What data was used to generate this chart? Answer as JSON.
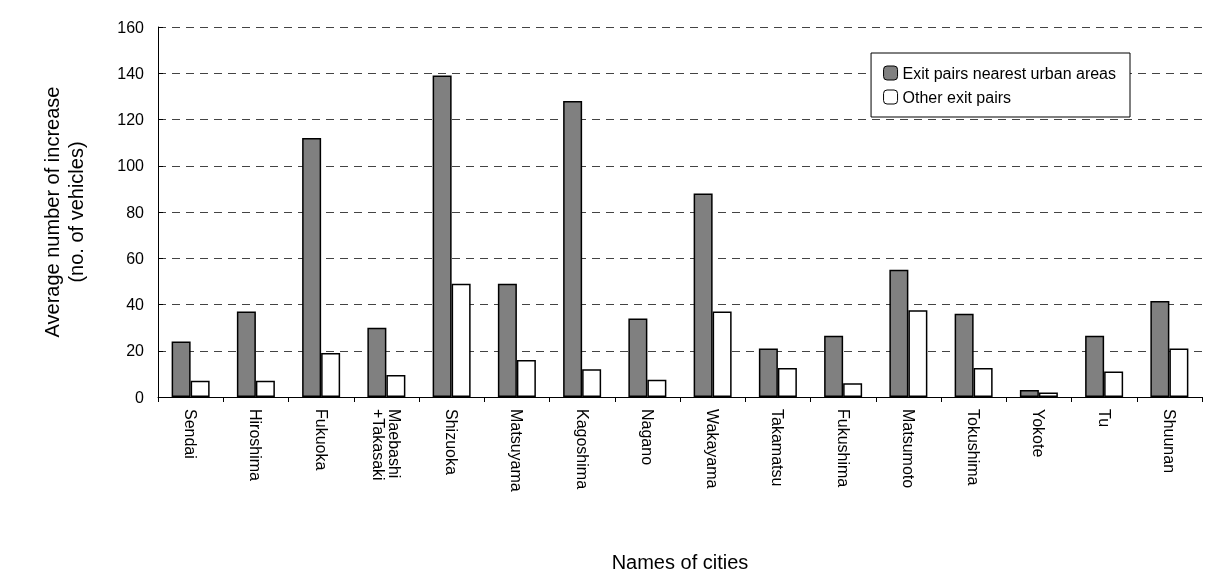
{
  "chart_data": {
    "type": "bar",
    "xlabel": "Names of cities",
    "ylabel": "Average number of increase\n(no. of vehicles)",
    "categories": [
      "Sendai",
      "Hiroshima",
      "Fukuoka",
      "Maebashi\n+Takasaki",
      "Shizuoka",
      "Matsuyama",
      "Kagoshima",
      "Nagano",
      "Wakayama",
      "Takamatsu",
      "Fukushima",
      "Matsumoto",
      "Tokushima",
      "Yokote",
      "Tu",
      "Shuunan"
    ],
    "series": [
      {
        "name": "Exit pairs nearest urban areas",
        "color": "#808080",
        "values": [
          24,
          37,
          112,
          30,
          139,
          49,
          128,
          34,
          88,
          21,
          26.5,
          55,
          36,
          3,
          26.5,
          41.5
        ]
      },
      {
        "name": "Other exit pairs",
        "color": "#ffffff",
        "values": [
          7,
          7,
          19,
          9.5,
          49,
          16,
          12,
          7.5,
          37,
          12.5,
          6,
          37.5,
          12.5,
          2,
          11,
          21
        ]
      }
    ],
    "ylim": [
      0,
      160
    ],
    "yticks": [
      0,
      20,
      40,
      60,
      80,
      100,
      120,
      140,
      160
    ],
    "grid": "y",
    "legend": "top right"
  }
}
